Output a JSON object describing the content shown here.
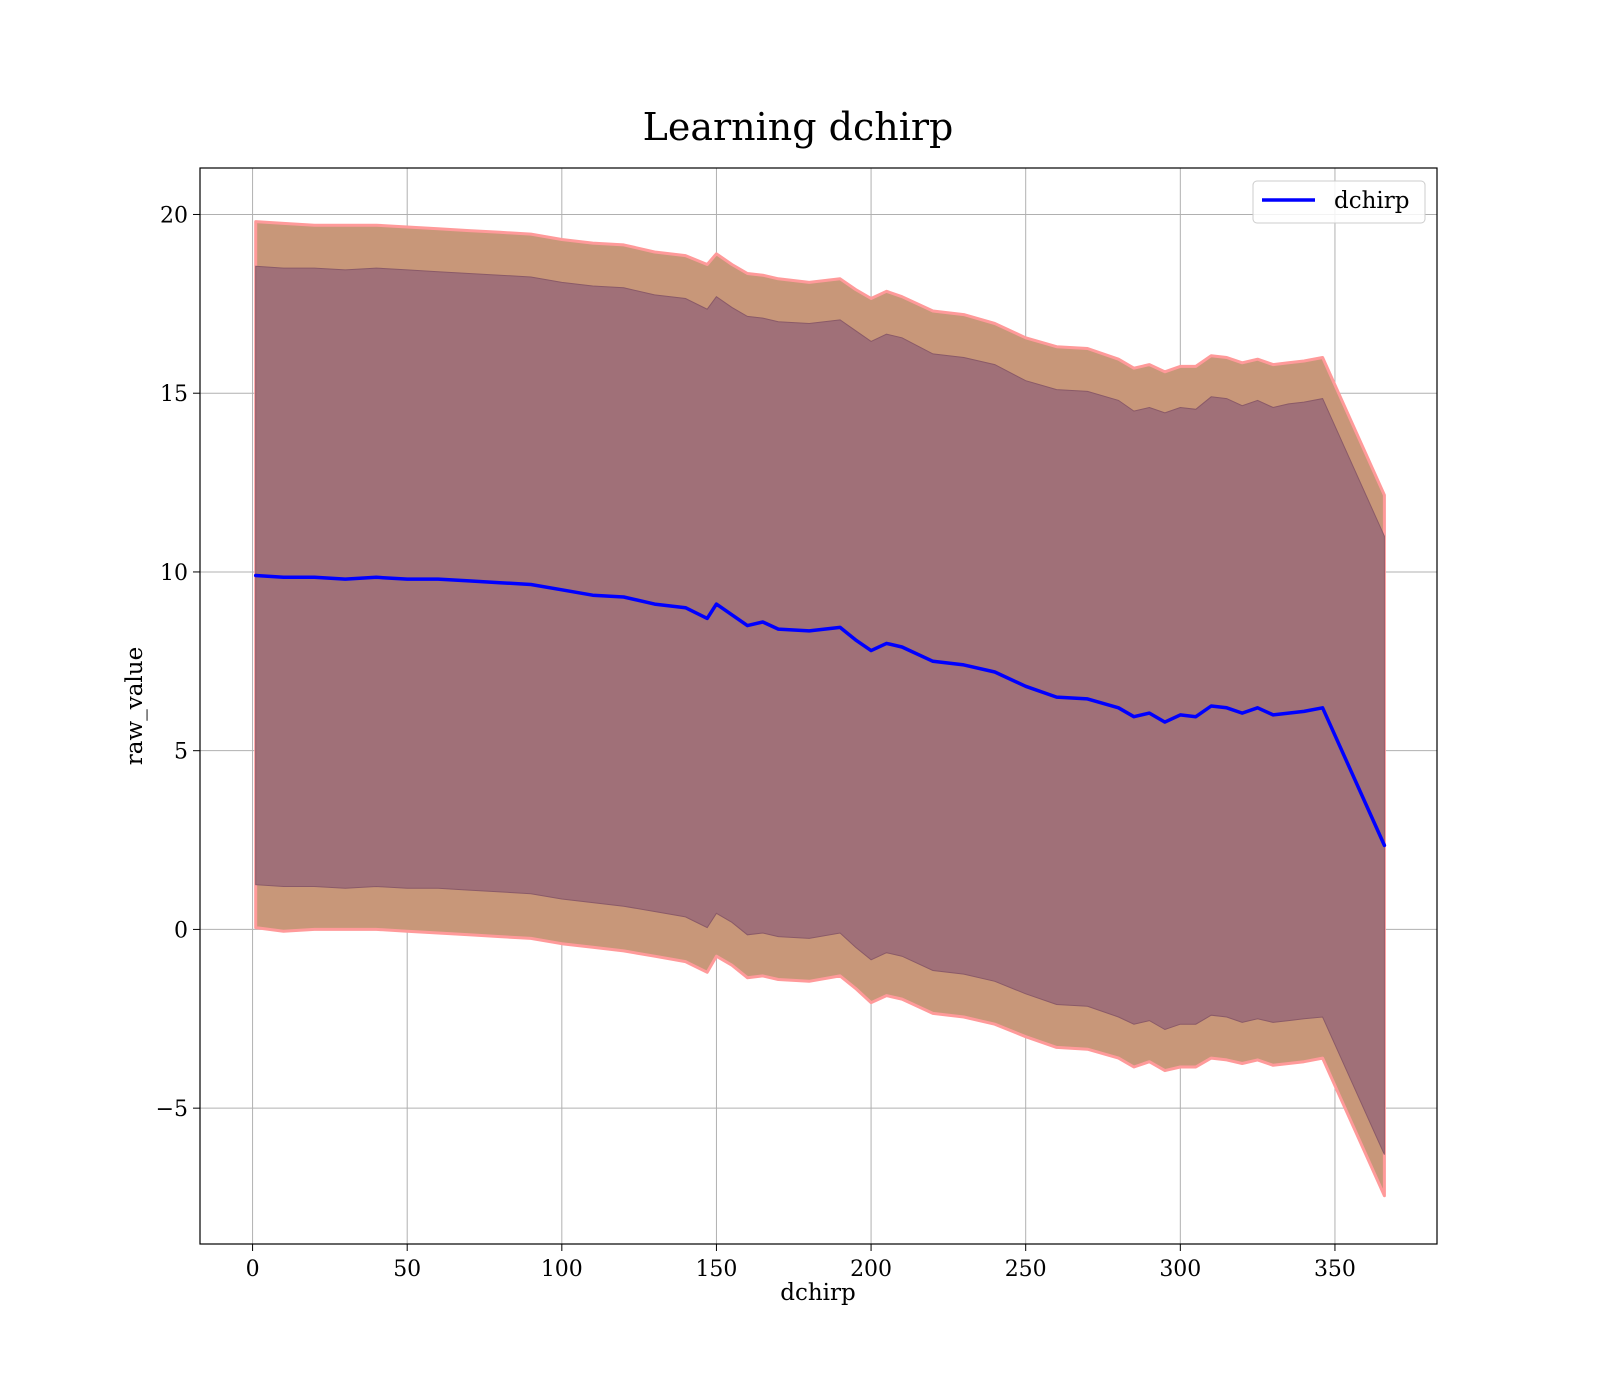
{
  "chart_data": {
    "type": "line",
    "title": "Learning dchirp",
    "xlabel": "dchirp",
    "ylabel": "raw_value",
    "xlim": [
      -17,
      383
    ],
    "ylim": [
      -8.8,
      21.3
    ],
    "xticks": [
      0,
      50,
      100,
      150,
      200,
      250,
      300,
      350
    ],
    "yticks": [
      -5,
      0,
      5,
      10,
      15,
      20
    ],
    "xtick_labels": [
      "0",
      "50",
      "100",
      "150",
      "200",
      "250",
      "300",
      "350"
    ],
    "ytick_labels": [
      "−5",
      "0",
      "5",
      "10",
      "15",
      "20"
    ],
    "grid": true,
    "legend": {
      "position": "upper right",
      "entries": [
        "dchirp"
      ]
    },
    "colors": {
      "line": "#0000ff",
      "outer_band": "#c89779",
      "outer_band_edge": "#ff9a9a",
      "inner_band": "#a07078",
      "grid": "#b0b0b0"
    },
    "x": [
      1,
      10,
      20,
      30,
      40,
      50,
      60,
      70,
      80,
      90,
      100,
      110,
      120,
      130,
      140,
      147,
      150,
      155,
      160,
      165,
      170,
      180,
      190,
      195,
      200,
      205,
      210,
      220,
      230,
      240,
      250,
      260,
      270,
      280,
      285,
      290,
      295,
      300,
      305,
      310,
      315,
      320,
      325,
      330,
      335,
      340,
      346,
      366
    ],
    "series": [
      {
        "name": "dchirp",
        "role": "mean",
        "values": [
          9.9,
          9.85,
          9.85,
          9.8,
          9.85,
          9.8,
          9.8,
          9.75,
          9.7,
          9.65,
          9.5,
          9.35,
          9.3,
          9.1,
          9.0,
          8.7,
          9.1,
          8.8,
          8.5,
          8.6,
          8.4,
          8.35,
          8.45,
          8.1,
          7.8,
          8.0,
          7.9,
          7.5,
          7.4,
          7.2,
          6.8,
          6.5,
          6.45,
          6.2,
          5.95,
          6.05,
          5.8,
          6.0,
          5.95,
          6.25,
          6.2,
          6.05,
          6.2,
          6.0,
          6.05,
          6.1,
          6.2,
          2.35
        ]
      }
    ],
    "bands": [
      {
        "role": "outer",
        "upper": [
          19.8,
          19.75,
          19.7,
          19.7,
          19.7,
          19.65,
          19.6,
          19.55,
          19.5,
          19.45,
          19.3,
          19.2,
          19.15,
          18.95,
          18.85,
          18.6,
          18.9,
          18.6,
          18.35,
          18.3,
          18.2,
          18.1,
          18.2,
          17.9,
          17.65,
          17.85,
          17.7,
          17.3,
          17.2,
          16.95,
          16.55,
          16.3,
          16.25,
          15.95,
          15.7,
          15.8,
          15.6,
          15.75,
          15.75,
          16.05,
          16.0,
          15.85,
          15.95,
          15.8,
          15.85,
          15.9,
          16.0,
          12.15
        ],
        "lower": [
          0.05,
          -0.05,
          0.0,
          0.0,
          0.0,
          -0.05,
          -0.1,
          -0.15,
          -0.2,
          -0.25,
          -0.4,
          -0.5,
          -0.6,
          -0.75,
          -0.9,
          -1.2,
          -0.75,
          -1.0,
          -1.35,
          -1.3,
          -1.4,
          -1.45,
          -1.3,
          -1.65,
          -2.05,
          -1.85,
          -1.95,
          -2.35,
          -2.45,
          -2.65,
          -3.0,
          -3.3,
          -3.35,
          -3.6,
          -3.85,
          -3.7,
          -3.95,
          -3.85,
          -3.85,
          -3.6,
          -3.65,
          -3.75,
          -3.65,
          -3.8,
          -3.75,
          -3.7,
          -3.6,
          -7.45
        ]
      },
      {
        "role": "inner",
        "upper": [
          18.55,
          18.5,
          18.5,
          18.45,
          18.5,
          18.45,
          18.4,
          18.35,
          18.3,
          18.25,
          18.1,
          18.0,
          17.95,
          17.75,
          17.65,
          17.35,
          17.7,
          17.4,
          17.15,
          17.1,
          17.0,
          16.95,
          17.05,
          16.75,
          16.45,
          16.65,
          16.55,
          16.1,
          16.0,
          15.8,
          15.35,
          15.1,
          15.05,
          14.8,
          14.5,
          14.6,
          14.45,
          14.6,
          14.55,
          14.9,
          14.85,
          14.65,
          14.8,
          14.6,
          14.7,
          14.75,
          14.85,
          11.0
        ],
        "lower": [
          1.25,
          1.2,
          1.2,
          1.15,
          1.2,
          1.15,
          1.15,
          1.1,
          1.05,
          1.0,
          0.85,
          0.75,
          0.65,
          0.5,
          0.35,
          0.05,
          0.45,
          0.2,
          -0.15,
          -0.1,
          -0.2,
          -0.25,
          -0.1,
          -0.5,
          -0.85,
          -0.65,
          -0.75,
          -1.15,
          -1.25,
          -1.45,
          -1.8,
          -2.1,
          -2.15,
          -2.45,
          -2.65,
          -2.55,
          -2.8,
          -2.65,
          -2.65,
          -2.4,
          -2.45,
          -2.6,
          -2.5,
          -2.6,
          -2.55,
          -2.5,
          -2.45,
          -6.3
        ]
      }
    ]
  }
}
